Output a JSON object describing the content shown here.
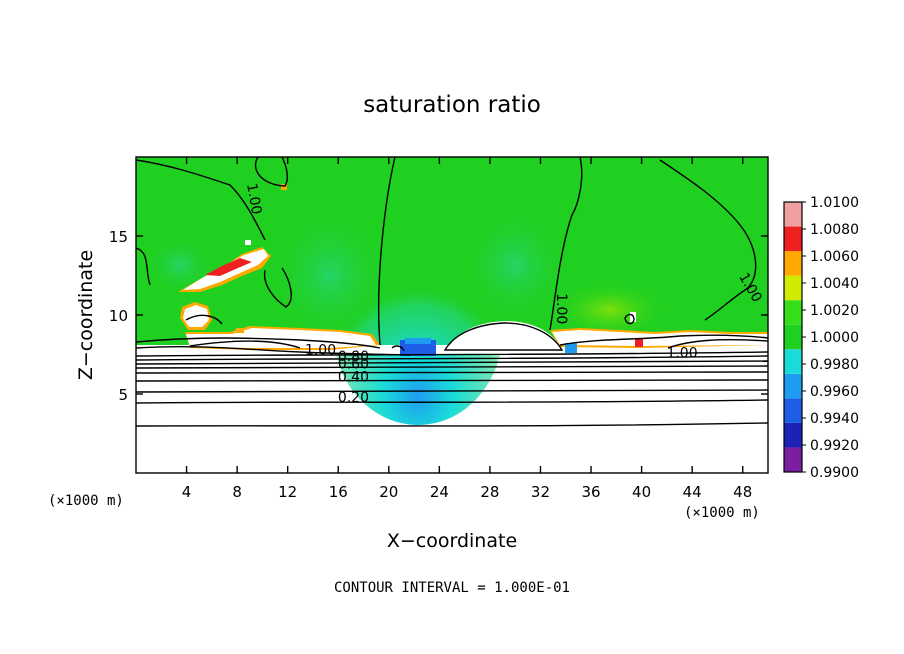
{
  "chart_data": {
    "type": "heatmap",
    "title": "saturation ratio",
    "xlabel": "X−coordinate",
    "ylabel": "Z−coordinate",
    "x_unit_left": "(×1000 m)",
    "x_unit_right": "(×1000 m)",
    "xlim": [
      0,
      50
    ],
    "ylim": [
      0,
      20
    ],
    "x_ticks": [
      4,
      8,
      12,
      16,
      20,
      24,
      28,
      32,
      36,
      40,
      44,
      48
    ],
    "y_ticks": [
      5,
      10,
      15
    ],
    "x_tick_labels": [
      "4",
      "8",
      "12",
      "16",
      "20",
      "24",
      "28",
      "32",
      "36",
      "40",
      "44",
      "48"
    ],
    "y_tick_labels": [
      "5",
      "10",
      "15"
    ],
    "colorbar": {
      "levels": [
        0.99,
        0.992,
        0.994,
        0.996,
        0.998,
        1.0,
        1.002,
        1.004,
        1.006,
        1.008,
        1.01
      ],
      "labels": [
        "0.9900",
        "0.9920",
        "0.9940",
        "0.9960",
        "0.9980",
        "1.0000",
        "1.0020",
        "1.0040",
        "1.0060",
        "1.0080",
        "1.0100"
      ],
      "colors": [
        "#7a1fa0",
        "#1c22b4",
        "#1e5ee6",
        "#1e9cf0",
        "#19dcd8",
        "#20d020",
        "#34de18",
        "#d0ea00",
        "#ffa800",
        "#ee2020",
        "#f0a0a0"
      ]
    },
    "contour_labels": [
      {
        "text": "1.00",
        "x": 9.0,
        "z": 17.3,
        "rotate": 80
      },
      {
        "text": "1.00",
        "x": 33.3,
        "z": 10.4,
        "rotate": 90
      },
      {
        "text": "1.00",
        "x": 48.3,
        "z": 11.6,
        "rotate": 60
      },
      {
        "text": "1.00",
        "x": 14.6,
        "z": 7.5,
        "rotate": 0
      },
      {
        "text": "1.00",
        "x": 43.2,
        "z": 7.3,
        "rotate": 0
      },
      {
        "text": "0.80",
        "x": 17.2,
        "z": 7.1,
        "rotate": 0
      },
      {
        "text": "0.60",
        "x": 17.2,
        "z": 6.6,
        "rotate": 0
      },
      {
        "text": "0.40",
        "x": 17.2,
        "z": 5.8,
        "rotate": 0
      },
      {
        "text": "0.20",
        "x": 17.2,
        "z": 4.5,
        "rotate": 0
      }
    ],
    "horizontal_contours_z": [
      3.0,
      4.5,
      5.2,
      5.8,
      6.3,
      6.6,
      6.9,
      7.1
    ],
    "footer": "CONTOUR INTERVAL = 1.000E-01"
  }
}
